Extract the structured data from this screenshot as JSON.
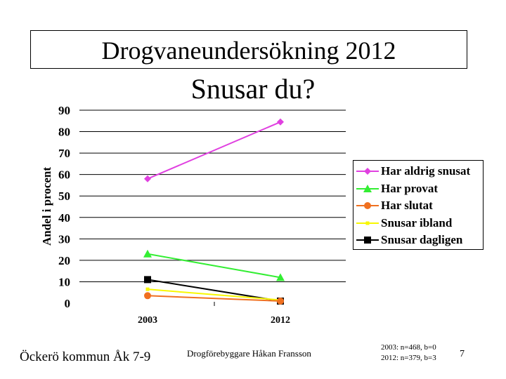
{
  "slide": {
    "title": "Drogvaneundersökning 2012",
    "subtitle": "Snusar du?",
    "footer_left": "Öckerö kommun Åk 7-9",
    "footer_mid": "Drogförebyggare Håkan Fransson",
    "footer_notes": [
      "2003: n=468, b=0",
      "2012: n=379, b=3"
    ],
    "page_number": "7"
  },
  "chart_data": {
    "type": "line",
    "title": "",
    "xlabel": "",
    "ylabel": "Andel i procent",
    "categories": [
      "2003",
      "2012"
    ],
    "ylim": [
      0,
      90
    ],
    "yticks": [
      0,
      10,
      20,
      30,
      40,
      50,
      60,
      70,
      80,
      90
    ],
    "grid": true,
    "legend_position": "right",
    "series": [
      {
        "name": "Har aldrig snusat",
        "values": [
          58,
          84.5
        ],
        "color": "#e040e0",
        "marker": "diamond"
      },
      {
        "name": "Har provat",
        "values": [
          23,
          12
        ],
        "color": "#33ee33",
        "marker": "triangle"
      },
      {
        "name": "Har slutat",
        "values": [
          3.5,
          1
        ],
        "color": "#f07020",
        "marker": "circle"
      },
      {
        "name": "Snusar ibland",
        "values": [
          6.5,
          1.5
        ],
        "color": "#f8f800",
        "marker": "dot"
      },
      {
        "name": "Snusar dagligen",
        "values": [
          11,
          1
        ],
        "color": "#000000",
        "marker": "square"
      }
    ]
  }
}
